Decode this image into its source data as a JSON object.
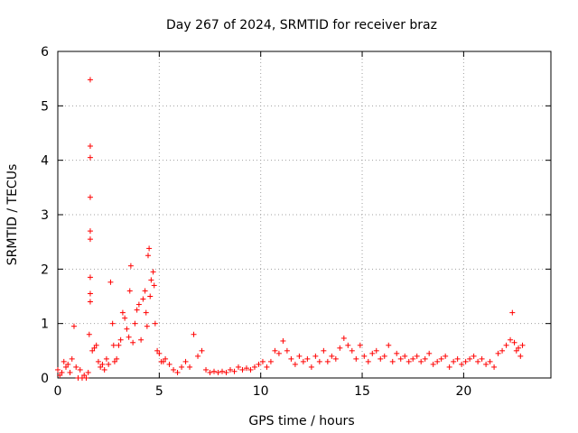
{
  "chart_data": {
    "type": "scatter",
    "title": "Day 267 of 2024, SRMTID for receiver braz",
    "xlabel": "GPS time / hours",
    "ylabel": "SRMTID / TECUs",
    "xlim": [
      0,
      24.3
    ],
    "ylim": [
      0,
      6
    ],
    "xticks": [
      "0",
      "5",
      "10",
      "15",
      "20"
    ],
    "yticks": [
      "0",
      "1",
      "2",
      "3",
      "4",
      "5",
      "6"
    ],
    "grid": true,
    "marker": "+",
    "series": [
      {
        "name": "SRMTID",
        "color": "#ff0000",
        "x": [
          0.0,
          0.1,
          0.2,
          0.3,
          0.4,
          0.5,
          0.6,
          0.7,
          0.8,
          0.9,
          1.0,
          1.1,
          1.2,
          1.3,
          1.4,
          1.5,
          1.55,
          1.6,
          1.6,
          1.6,
          1.6,
          1.6,
          1.6,
          1.6,
          1.6,
          1.6,
          1.7,
          1.8,
          1.9,
          2.0,
          2.1,
          2.2,
          2.3,
          2.4,
          2.5,
          2.6,
          2.7,
          2.75,
          2.8,
          2.9,
          3.0,
          3.1,
          3.2,
          3.3,
          3.4,
          3.5,
          3.55,
          3.6,
          3.7,
          3.8,
          3.9,
          4.0,
          4.1,
          4.2,
          4.3,
          4.35,
          4.4,
          4.45,
          4.5,
          4.55,
          4.6,
          4.7,
          4.75,
          4.8,
          4.9,
          5.0,
          5.1,
          5.2,
          5.3,
          5.5,
          5.7,
          5.9,
          6.1,
          6.3,
          6.5,
          6.7,
          6.9,
          7.1,
          7.3,
          7.5,
          7.7,
          7.9,
          8.1,
          8.3,
          8.5,
          8.7,
          8.9,
          9.1,
          9.3,
          9.5,
          9.7,
          9.9,
          10.1,
          10.3,
          10.5,
          10.7,
          10.9,
          11.1,
          11.3,
          11.5,
          11.7,
          11.9,
          12.1,
          12.3,
          12.5,
          12.7,
          12.9,
          13.1,
          13.3,
          13.5,
          13.7,
          13.9,
          14.1,
          14.3,
          14.5,
          14.7,
          14.9,
          15.1,
          15.3,
          15.5,
          15.7,
          15.9,
          16.1,
          16.3,
          16.5,
          16.7,
          16.9,
          17.1,
          17.3,
          17.5,
          17.7,
          17.9,
          18.1,
          18.3,
          18.5,
          18.7,
          18.9,
          19.1,
          19.3,
          19.5,
          19.7,
          19.9,
          20.1,
          20.3,
          20.5,
          20.7,
          20.9,
          21.1,
          21.3,
          21.5,
          21.7,
          21.9,
          22.1,
          22.3,
          22.4,
          22.5,
          22.6,
          22.7,
          22.8,
          22.9
        ],
        "y": [
          0.15,
          0.05,
          0.1,
          0.3,
          0.2,
          0.25,
          0.1,
          0.35,
          0.95,
          0.2,
          0.0,
          0.15,
          0.0,
          0.05,
          0.0,
          0.1,
          0.8,
          5.48,
          4.26,
          4.05,
          3.32,
          2.7,
          2.55,
          1.85,
          1.55,
          1.4,
          0.5,
          0.55,
          0.6,
          0.3,
          0.2,
          0.25,
          0.15,
          0.35,
          0.25,
          1.76,
          1.0,
          0.6,
          0.3,
          0.35,
          0.6,
          0.7,
          1.2,
          1.1,
          0.9,
          0.75,
          1.6,
          2.06,
          0.65,
          1.0,
          1.25,
          1.35,
          0.7,
          1.45,
          1.6,
          1.2,
          0.95,
          2.25,
          2.38,
          1.5,
          1.8,
          1.95,
          1.7,
          1.0,
          0.5,
          0.45,
          0.3,
          0.3,
          0.35,
          0.25,
          0.15,
          0.1,
          0.2,
          0.3,
          0.2,
          0.8,
          0.4,
          0.5,
          0.15,
          0.1,
          0.12,
          0.1,
          0.12,
          0.1,
          0.15,
          0.12,
          0.2,
          0.15,
          0.18,
          0.15,
          0.2,
          0.25,
          0.3,
          0.2,
          0.3,
          0.5,
          0.45,
          0.68,
          0.5,
          0.35,
          0.25,
          0.4,
          0.3,
          0.35,
          0.2,
          0.4,
          0.3,
          0.5,
          0.3,
          0.4,
          0.35,
          0.55,
          0.73,
          0.6,
          0.5,
          0.35,
          0.6,
          0.4,
          0.3,
          0.45,
          0.5,
          0.35,
          0.4,
          0.6,
          0.3,
          0.45,
          0.35,
          0.4,
          0.3,
          0.35,
          0.4,
          0.3,
          0.35,
          0.45,
          0.25,
          0.3,
          0.35,
          0.4,
          0.2,
          0.3,
          0.35,
          0.25,
          0.3,
          0.35,
          0.4,
          0.3,
          0.35,
          0.25,
          0.3,
          0.2,
          0.45,
          0.5,
          0.6,
          0.7,
          1.2,
          0.65,
          0.5,
          0.55,
          0.4,
          0.6
        ]
      }
    ]
  }
}
